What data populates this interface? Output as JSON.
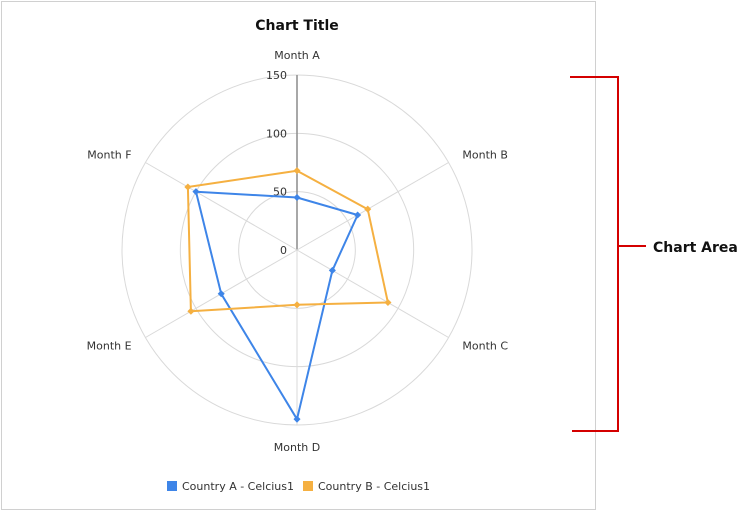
{
  "chart_data": {
    "type": "radar",
    "title": "Chart Title",
    "categories": [
      "Month A",
      "Month B",
      "Month C",
      "Month D",
      "Month E",
      "Month F"
    ],
    "rlim": [
      0,
      150
    ],
    "ticks": [
      "0",
      "50",
      "100",
      "150"
    ],
    "series": [
      {
        "name": "Country A - Celcius1",
        "color": "#3e85e8",
        "values": [
          45,
          60,
          35,
          145,
          75,
          100
        ]
      },
      {
        "name": "Country B - Celcius1",
        "color": "#f5b041",
        "values": [
          68,
          70,
          90,
          47,
          105,
          108
        ]
      }
    ],
    "legend_position": "bottom",
    "grid": true
  },
  "annotation": {
    "label": "Chart Area",
    "color": "#d40000"
  }
}
